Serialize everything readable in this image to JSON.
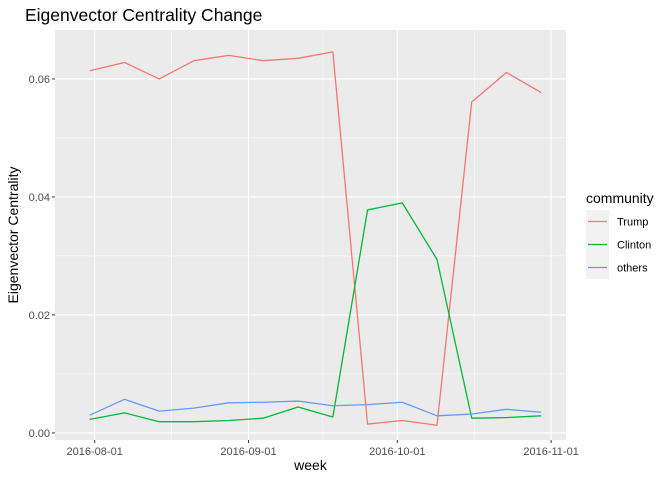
{
  "chart_data": {
    "type": "line",
    "title": "Eigenvector Centrality Change",
    "xlabel": "week",
    "ylabel": "Eigenvector Centrality",
    "x_is_date": true,
    "xlim": [
      "2016-07-24",
      "2016-11-04"
    ],
    "ylim": [
      -0.0012,
      0.0683
    ],
    "x_ticks": [
      "2016-08-01",
      "2016-09-01",
      "2016-10-01",
      "2016-11-01"
    ],
    "y_ticks": [
      0.0,
      0.02,
      0.04,
      0.06
    ],
    "y_tick_labels": [
      "0.00",
      "0.02",
      "0.04",
      "0.06"
    ],
    "grid": true,
    "legend_title": "community",
    "legend_position": "right",
    "x": [
      "2016-07-31",
      "2016-08-07",
      "2016-08-14",
      "2016-08-21",
      "2016-08-28",
      "2016-09-04",
      "2016-09-11",
      "2016-09-18",
      "2016-09-25",
      "2016-10-02",
      "2016-10-09",
      "2016-10-16",
      "2016-10-23",
      "2016-10-30"
    ],
    "series": [
      {
        "name": "Trump",
        "color": "#F8766D",
        "values": [
          0.0614,
          0.0628,
          0.06,
          0.0631,
          0.064,
          0.0631,
          0.0635,
          0.0646,
          0.0015,
          0.0021,
          0.0013,
          0.0561,
          0.0611,
          0.0577
        ]
      },
      {
        "name": "Clinton",
        "color": "#00BA38",
        "values": [
          0.0023,
          0.0034,
          0.0019,
          0.0019,
          0.0021,
          0.0025,
          0.0044,
          0.0027,
          0.0378,
          0.039,
          0.0294,
          0.0025,
          0.0026,
          0.0029
        ]
      },
      {
        "name": "others",
        "color": "#619CFF",
        "values": [
          0.003,
          0.0057,
          0.0037,
          0.0042,
          0.0051,
          0.0052,
          0.0054,
          0.0046,
          0.0048,
          0.0052,
          0.0029,
          0.0032,
          0.004,
          0.0035
        ]
      }
    ]
  },
  "colors": {
    "panel_background": "#EBEBEB",
    "grid_major": "#FFFFFF",
    "axis_text": "#4D4D4D",
    "title_text": "#000000"
  }
}
